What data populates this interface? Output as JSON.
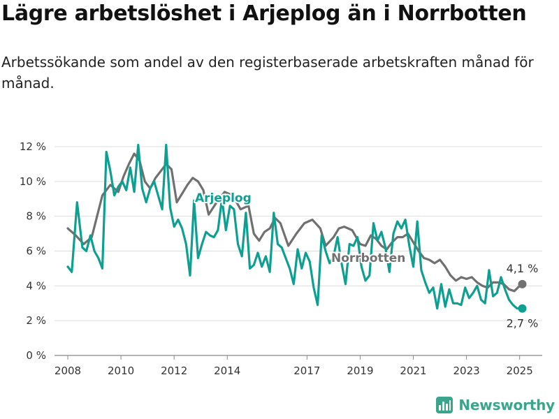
{
  "title": "Lägre arbetslöshet i Arjeplog än i Norrbotten",
  "subtitle": "Arbetssökande som andel av den registerbaserade arbetskraften månad för månad.",
  "brand": {
    "name": "Newsworthy",
    "color": "#3aa58c",
    "icon": "bar-chart-logo-icon"
  },
  "chart_data": {
    "type": "line",
    "title": "Lägre arbetslöshet i Arjeplog än i Norrbotten",
    "subtitle": "Arbetssökande som andel av den registerbaserade arbetskraften månad för månad.",
    "xlabel": "",
    "ylabel": "",
    "x_range": [
      2007.5,
      2025.85
    ],
    "ylim": [
      0,
      12
    ],
    "yticks": [
      0,
      2,
      4,
      6,
      8,
      10,
      12
    ],
    "ytick_labels": [
      "0 %",
      "2 %",
      "4 %",
      "6 %",
      "8 %",
      "10 %",
      "12 %"
    ],
    "xticks": [
      2008,
      2010,
      2012,
      2014,
      2017,
      2019,
      2021,
      2023,
      2025
    ],
    "xtick_labels": [
      "2008",
      "2010",
      "2012",
      "2014",
      "2017",
      "2019",
      "2021",
      "2023",
      "2025"
    ],
    "grid": true,
    "legend": "inline labels",
    "series": [
      {
        "name": "Norrbotten",
        "color": "#707070",
        "end_label": "4,1 %",
        "points": [
          [
            2008.0,
            7.3
          ],
          [
            2008.3,
            6.9
          ],
          [
            2008.6,
            6.4
          ],
          [
            2008.9,
            6.8
          ],
          [
            2009.1,
            8.0
          ],
          [
            2009.3,
            9.2
          ],
          [
            2009.6,
            9.8
          ],
          [
            2009.9,
            9.4
          ],
          [
            2010.1,
            10.3
          ],
          [
            2010.3,
            11.0
          ],
          [
            2010.5,
            11.6
          ],
          [
            2010.7,
            11.2
          ],
          [
            2010.9,
            10.0
          ],
          [
            2011.1,
            9.6
          ],
          [
            2011.3,
            10.2
          ],
          [
            2011.5,
            10.6
          ],
          [
            2011.7,
            11.0
          ],
          [
            2011.9,
            10.7
          ],
          [
            2012.1,
            8.8
          ],
          [
            2012.3,
            9.3
          ],
          [
            2012.5,
            9.8
          ],
          [
            2012.7,
            10.2
          ],
          [
            2012.9,
            10.0
          ],
          [
            2013.1,
            9.5
          ],
          [
            2013.3,
            8.1
          ],
          [
            2013.6,
            8.8
          ],
          [
            2013.9,
            9.4
          ],
          [
            2014.2,
            9.2
          ],
          [
            2014.5,
            8.4
          ],
          [
            2014.8,
            8.6
          ],
          [
            2015.0,
            7.0
          ],
          [
            2015.2,
            6.6
          ],
          [
            2015.4,
            7.1
          ],
          [
            2015.6,
            7.3
          ],
          [
            2015.8,
            7.9
          ],
          [
            2016.0,
            7.6
          ],
          [
            2016.3,
            6.3
          ],
          [
            2016.6,
            7.0
          ],
          [
            2016.9,
            7.6
          ],
          [
            2017.2,
            7.8
          ],
          [
            2017.5,
            7.3
          ],
          [
            2017.7,
            6.3
          ],
          [
            2018.0,
            6.8
          ],
          [
            2018.2,
            7.3
          ],
          [
            2018.4,
            7.4
          ],
          [
            2018.7,
            7.2
          ],
          [
            2019.0,
            6.4
          ],
          [
            2019.2,
            6.3
          ],
          [
            2019.4,
            6.9
          ],
          [
            2019.6,
            6.7
          ],
          [
            2019.8,
            6.3
          ],
          [
            2020.0,
            6.1
          ],
          [
            2020.2,
            6.5
          ],
          [
            2020.4,
            6.8
          ],
          [
            2020.6,
            6.8
          ],
          [
            2020.8,
            7.0
          ],
          [
            2021.0,
            6.5
          ],
          [
            2021.2,
            6.0
          ],
          [
            2021.4,
            5.6
          ],
          [
            2021.6,
            5.5
          ],
          [
            2021.8,
            5.3
          ],
          [
            2022.0,
            5.5
          ],
          [
            2022.2,
            5.1
          ],
          [
            2022.4,
            4.6
          ],
          [
            2022.6,
            4.3
          ],
          [
            2022.8,
            4.5
          ],
          [
            2023.0,
            4.4
          ],
          [
            2023.2,
            4.5
          ],
          [
            2023.4,
            4.2
          ],
          [
            2023.6,
            4.0
          ],
          [
            2023.8,
            3.9
          ],
          [
            2024.0,
            4.2
          ],
          [
            2024.2,
            4.2
          ],
          [
            2024.4,
            4.1
          ],
          [
            2024.6,
            3.8
          ],
          [
            2024.8,
            3.7
          ],
          [
            2025.0,
            4.0
          ],
          [
            2025.1,
            4.1
          ]
        ]
      },
      {
        "name": "Arjeplog",
        "color": "#0f9f91",
        "end_label": "2,7 %",
        "points": [
          [
            2008.0,
            5.1
          ],
          [
            2008.15,
            4.8
          ],
          [
            2008.35,
            8.8
          ],
          [
            2008.55,
            6.2
          ],
          [
            2008.7,
            6.0
          ],
          [
            2008.85,
            6.9
          ],
          [
            2009.0,
            6.0
          ],
          [
            2009.15,
            5.6
          ],
          [
            2009.3,
            5.0
          ],
          [
            2009.45,
            11.7
          ],
          [
            2009.6,
            10.6
          ],
          [
            2009.75,
            9.2
          ],
          [
            2009.9,
            9.7
          ],
          [
            2010.05,
            10.0
          ],
          [
            2010.2,
            9.5
          ],
          [
            2010.35,
            10.8
          ],
          [
            2010.5,
            9.4
          ],
          [
            2010.65,
            12.1
          ],
          [
            2010.8,
            9.6
          ],
          [
            2010.95,
            8.8
          ],
          [
            2011.1,
            9.6
          ],
          [
            2011.25,
            10.0
          ],
          [
            2011.4,
            9.2
          ],
          [
            2011.55,
            8.4
          ],
          [
            2011.7,
            12.1
          ],
          [
            2011.85,
            8.5
          ],
          [
            2012.0,
            7.4
          ],
          [
            2012.15,
            7.8
          ],
          [
            2012.3,
            7.3
          ],
          [
            2012.45,
            6.4
          ],
          [
            2012.6,
            4.6
          ],
          [
            2012.75,
            8.9
          ],
          [
            2012.9,
            5.6
          ],
          [
            2013.05,
            6.4
          ],
          [
            2013.2,
            7.1
          ],
          [
            2013.35,
            6.9
          ],
          [
            2013.5,
            6.8
          ],
          [
            2013.65,
            7.2
          ],
          [
            2013.8,
            9.0
          ],
          [
            2013.95,
            7.2
          ],
          [
            2014.1,
            8.6
          ],
          [
            2014.25,
            8.4
          ],
          [
            2014.4,
            6.4
          ],
          [
            2014.55,
            5.7
          ],
          [
            2014.7,
            8.2
          ],
          [
            2014.85,
            5.0
          ],
          [
            2015.0,
            5.2
          ],
          [
            2015.15,
            5.9
          ],
          [
            2015.3,
            5.1
          ],
          [
            2015.45,
            5.7
          ],
          [
            2015.6,
            4.8
          ],
          [
            2015.75,
            8.2
          ],
          [
            2015.9,
            6.4
          ],
          [
            2016.05,
            6.2
          ],
          [
            2016.2,
            5.6
          ],
          [
            2016.35,
            5.0
          ],
          [
            2016.5,
            4.1
          ],
          [
            2016.65,
            6.1
          ],
          [
            2016.8,
            5.0
          ],
          [
            2016.95,
            5.9
          ],
          [
            2017.1,
            5.4
          ],
          [
            2017.25,
            3.9
          ],
          [
            2017.4,
            2.9
          ],
          [
            2017.55,
            6.9
          ],
          [
            2017.7,
            6.0
          ],
          [
            2017.85,
            5.3
          ],
          [
            2018.0,
            5.7
          ],
          [
            2018.15,
            6.8
          ],
          [
            2018.3,
            5.3
          ],
          [
            2018.45,
            4.1
          ],
          [
            2018.6,
            6.4
          ],
          [
            2018.75,
            6.3
          ],
          [
            2018.9,
            6.8
          ],
          [
            2019.05,
            5.1
          ],
          [
            2019.2,
            4.3
          ],
          [
            2019.35,
            4.6
          ],
          [
            2019.5,
            7.6
          ],
          [
            2019.65,
            6.6
          ],
          [
            2019.8,
            7.1
          ],
          [
            2019.95,
            6.2
          ],
          [
            2020.1,
            4.8
          ],
          [
            2020.25,
            7.0
          ],
          [
            2020.4,
            7.7
          ],
          [
            2020.55,
            7.3
          ],
          [
            2020.7,
            7.8
          ],
          [
            2020.85,
            6.3
          ],
          [
            2021.0,
            5.1
          ],
          [
            2021.15,
            7.7
          ],
          [
            2021.3,
            4.9
          ],
          [
            2021.45,
            4.2
          ],
          [
            2021.6,
            3.6
          ],
          [
            2021.75,
            3.9
          ],
          [
            2021.9,
            2.7
          ],
          [
            2022.05,
            4.1
          ],
          [
            2022.2,
            2.8
          ],
          [
            2022.35,
            3.8
          ],
          [
            2022.5,
            3.0
          ],
          [
            2022.65,
            3.0
          ],
          [
            2022.8,
            2.9
          ],
          [
            2022.95,
            3.9
          ],
          [
            2023.1,
            3.3
          ],
          [
            2023.25,
            3.6
          ],
          [
            2023.4,
            4.0
          ],
          [
            2023.55,
            3.2
          ],
          [
            2023.7,
            3.0
          ],
          [
            2023.85,
            4.9
          ],
          [
            2024.0,
            3.4
          ],
          [
            2024.15,
            3.6
          ],
          [
            2024.3,
            4.5
          ],
          [
            2024.45,
            3.8
          ],
          [
            2024.6,
            3.2
          ],
          [
            2024.75,
            2.9
          ],
          [
            2024.9,
            2.7
          ],
          [
            2025.1,
            2.7
          ]
        ]
      }
    ]
  }
}
